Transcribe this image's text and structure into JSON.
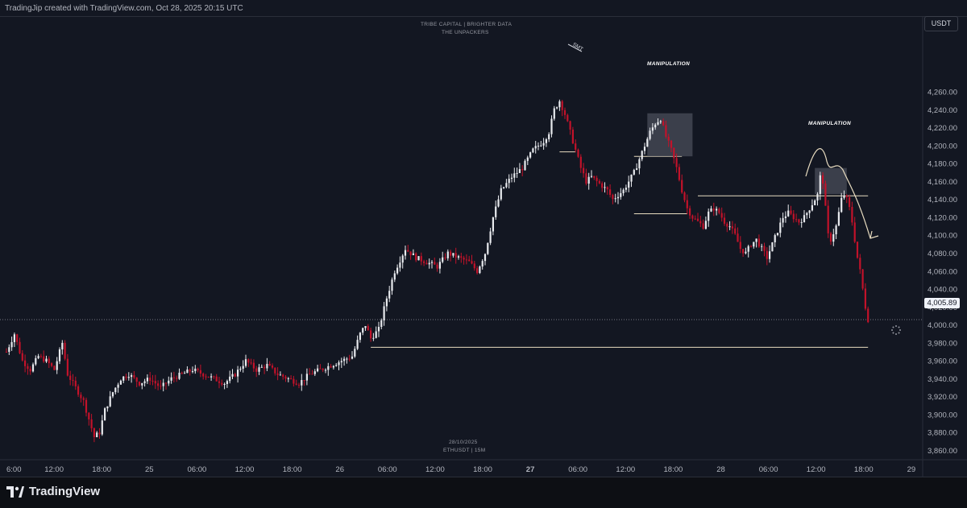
{
  "caption": "TradingJip created with TradingView.com, Oct 28, 2025 20:15 UTC",
  "watermark_top": [
    "TRIBE CAPITAL | BRIGHTER DATA",
    "THE UNPACKERS"
  ],
  "watermark_bottom": [
    "28/10/2025",
    "ETHUSDT | 15M"
  ],
  "currency": "USDT",
  "current_price": "4,005.89",
  "brand": "TradingView",
  "annotations": {
    "manipulation_1": "MANIPULATION",
    "manipulation_2": "MANIPULATION",
    "smt": "SMT"
  },
  "colors": {
    "background": "#131722",
    "up": "#e8eaee",
    "down": "#c2122a",
    "level_line": "#e8dcc0",
    "box_fill": "#4a4e5a"
  },
  "chart_data": {
    "type": "candlestick",
    "symbol": "ETHUSDT",
    "timeframe": "15M",
    "y_ticks": [
      3860,
      3880,
      3900,
      3920,
      3940,
      3960,
      3980,
      4000,
      4020,
      4040,
      4060,
      4080,
      4100,
      4120,
      4140,
      4160,
      4180,
      4200,
      4220,
      4240,
      4260
    ],
    "y_tick_labels": [
      "3,860.00",
      "3,880.00",
      "3,900.00",
      "3,920.00",
      "3,940.00",
      "3,960.00",
      "3,980.00",
      "4,000.00",
      "4,020.00",
      "4,040.00",
      "4,060.00",
      "4,080.00",
      "4,100.00",
      "4,120.00",
      "4,140.00",
      "4,160.00",
      "4,180.00",
      "4,200.00",
      "4,220.00",
      "4,240.00",
      "4,260.00"
    ],
    "x_tick_labels": [
      "6:00",
      "12:00",
      "18:00",
      "25",
      "06:00",
      "12:00",
      "18:00",
      "26",
      "06:00",
      "12:00",
      "18:00",
      "27",
      "06:00",
      "12:00",
      "18:00",
      "28",
      "06:00",
      "12:00",
      "18:00",
      "29"
    ],
    "bold_x_ticks": [
      "27"
    ],
    "price_path": [
      [
        0,
        3970
      ],
      [
        3,
        3990
      ],
      [
        6,
        3960
      ],
      [
        9,
        3950
      ],
      [
        12,
        3965
      ],
      [
        15,
        3960
      ],
      [
        18,
        3950
      ],
      [
        21,
        3980
      ],
      [
        23,
        3945
      ],
      [
        26,
        3930
      ],
      [
        29,
        3915
      ],
      [
        31,
        3895
      ],
      [
        33,
        3875
      ],
      [
        35,
        3880
      ],
      [
        37,
        3905
      ],
      [
        40,
        3925
      ],
      [
        43,
        3940
      ],
      [
        46,
        3945
      ],
      [
        50,
        3935
      ],
      [
        54,
        3940
      ],
      [
        58,
        3930
      ],
      [
        62,
        3940
      ],
      [
        66,
        3945
      ],
      [
        70,
        3950
      ],
      [
        74,
        3945
      ],
      [
        78,
        3940
      ],
      [
        82,
        3935
      ],
      [
        86,
        3945
      ],
      [
        90,
        3960
      ],
      [
        94,
        3950
      ],
      [
        98,
        3955
      ],
      [
        102,
        3945
      ],
      [
        106,
        3940
      ],
      [
        110,
        3935
      ],
      [
        114,
        3945
      ],
      [
        118,
        3950
      ],
      [
        122,
        3955
      ],
      [
        126,
        3960
      ],
      [
        130,
        3965
      ],
      [
        133,
        3990
      ],
      [
        135,
        4000
      ],
      [
        137,
        3985
      ],
      [
        140,
        3995
      ],
      [
        143,
        4030
      ],
      [
        146,
        4060
      ],
      [
        150,
        4085
      ],
      [
        154,
        4075
      ],
      [
        158,
        4070
      ],
      [
        162,
        4065
      ],
      [
        166,
        4080
      ],
      [
        170,
        4075
      ],
      [
        174,
        4070
      ],
      [
        177,
        4060
      ],
      [
        180,
        4080
      ],
      [
        183,
        4120
      ],
      [
        186,
        4150
      ],
      [
        190,
        4165
      ],
      [
        194,
        4175
      ],
      [
        198,
        4195
      ],
      [
        202,
        4205
      ],
      [
        204,
        4215
      ],
      [
        206,
        4240
      ],
      [
        208,
        4250
      ],
      [
        210,
        4235
      ],
      [
        212,
        4215
      ],
      [
        214,
        4195
      ],
      [
        216,
        4175
      ],
      [
        218,
        4160
      ],
      [
        220,
        4165
      ],
      [
        222,
        4160
      ],
      [
        224,
        4155
      ],
      [
        226,
        4150
      ],
      [
        228,
        4140
      ],
      [
        230,
        4145
      ],
      [
        232,
        4150
      ],
      [
        234,
        4160
      ],
      [
        236,
        4170
      ],
      [
        238,
        4185
      ],
      [
        240,
        4200
      ],
      [
        242,
        4215
      ],
      [
        244,
        4225
      ],
      [
        246,
        4230
      ],
      [
        248,
        4210
      ],
      [
        250,
        4195
      ],
      [
        252,
        4175
      ],
      [
        254,
        4150
      ],
      [
        256,
        4130
      ],
      [
        258,
        4120
      ],
      [
        260,
        4115
      ],
      [
        262,
        4110
      ],
      [
        264,
        4125
      ],
      [
        266,
        4130
      ],
      [
        268,
        4125
      ],
      [
        270,
        4115
      ],
      [
        272,
        4110
      ],
      [
        274,
        4100
      ],
      [
        276,
        4085
      ],
      [
        278,
        4080
      ],
      [
        280,
        4090
      ],
      [
        282,
        4095
      ],
      [
        284,
        4085
      ],
      [
        286,
        4075
      ],
      [
        288,
        4090
      ],
      [
        290,
        4105
      ],
      [
        292,
        4120
      ],
      [
        294,
        4125
      ],
      [
        296,
        4120
      ],
      [
        298,
        4115
      ],
      [
        300,
        4120
      ],
      [
        302,
        4130
      ],
      [
        304,
        4140
      ],
      [
        305,
        4145
      ],
      [
        306,
        4165
      ],
      [
        307,
        4160
      ],
      [
        308,
        4130
      ],
      [
        309,
        4100
      ],
      [
        310,
        4095
      ],
      [
        312,
        4110
      ],
      [
        314,
        4140
      ],
      [
        315,
        4145
      ],
      [
        316,
        4140
      ],
      [
        317,
        4130
      ],
      [
        318,
        4115
      ],
      [
        319,
        4095
      ],
      [
        320,
        4075
      ],
      [
        321,
        4060
      ],
      [
        322,
        4040
      ],
      [
        323,
        4020
      ],
      [
        324,
        4006
      ]
    ],
    "levels": [
      {
        "price": 3975,
        "x_from": 137,
        "x_to": 324
      },
      {
        "price": 4193,
        "x_from": 208,
        "x_to": 214
      },
      {
        "price": 4188,
        "x_from": 236,
        "x_to": 254
      },
      {
        "price": 4124,
        "x_from": 236,
        "x_to": 256
      },
      {
        "price": 4144,
        "x_from": 260,
        "x_to": 324
      }
    ]
  }
}
